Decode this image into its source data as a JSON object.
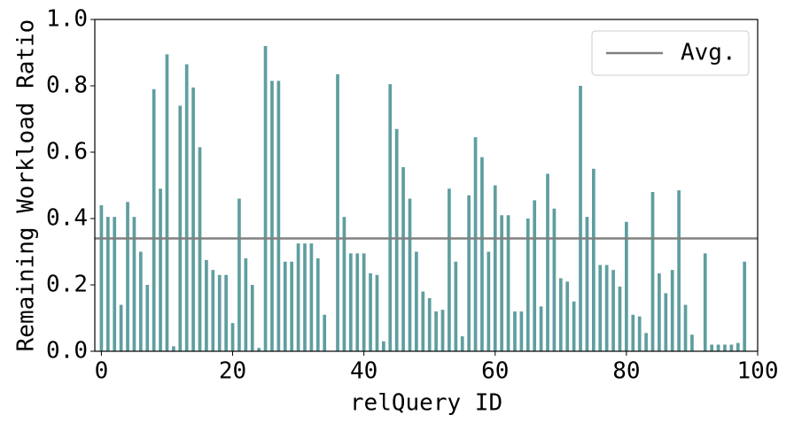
{
  "chart_data": {
    "type": "bar",
    "xlabel": "relQuery ID",
    "ylabel": "Remaining Workload Ratio",
    "x": [
      0,
      1,
      2,
      3,
      4,
      5,
      6,
      7,
      8,
      9,
      10,
      11,
      12,
      13,
      14,
      15,
      16,
      17,
      18,
      19,
      20,
      21,
      22,
      23,
      24,
      25,
      26,
      27,
      28,
      29,
      30,
      31,
      32,
      33,
      34,
      35,
      36,
      37,
      38,
      39,
      40,
      41,
      42,
      43,
      44,
      45,
      46,
      47,
      48,
      49,
      50,
      51,
      52,
      53,
      54,
      55,
      56,
      57,
      58,
      59,
      60,
      61,
      62,
      63,
      64,
      65,
      66,
      67,
      68,
      69,
      70,
      71,
      72,
      73,
      74,
      75,
      76,
      77,
      78,
      79,
      80,
      81,
      82,
      83,
      84,
      85,
      86,
      87,
      88,
      89,
      90,
      91,
      92,
      93,
      94,
      95,
      96,
      97,
      98
    ],
    "values": [
      0.44,
      0.405,
      0.405,
      0.14,
      0.45,
      0.405,
      0.3,
      0.2,
      0.79,
      0.49,
      0.895,
      0.015,
      0.74,
      0.865,
      0.795,
      0.615,
      0.275,
      0.245,
      0.23,
      0.23,
      0.085,
      0.46,
      0.28,
      0.2,
      0.01,
      0.92,
      0.815,
      0.815,
      0.27,
      0.27,
      0.325,
      0.325,
      0.325,
      0.28,
      0.11,
      0,
      0.835,
      0.405,
      0.295,
      0.295,
      0.295,
      0.235,
      0.23,
      0.03,
      0.805,
      0.67,
      0.555,
      0.46,
      0.3,
      0.18,
      0.16,
      0.12,
      0.125,
      0.49,
      0.27,
      0.045,
      0.47,
      0.645,
      0.585,
      0.3,
      0.5,
      0.41,
      0.41,
      0.12,
      0.12,
      0.4,
      0.455,
      0.135,
      0.535,
      0.43,
      0.22,
      0.21,
      0.15,
      0.8,
      0.405,
      0.55,
      0.26,
      0.26,
      0.245,
      0.195,
      0.39,
      0.11,
      0.105,
      0.055,
      0.48,
      0.235,
      0.175,
      0.245,
      0.485,
      0.14,
      0.05,
      0,
      0.295,
      0.02,
      0.02,
      0.02,
      0.02,
      0.025,
      0.27
    ],
    "color": "#5f9ea0",
    "average": {
      "name": "Avg.",
      "value": 0.34,
      "color": "#808080"
    },
    "xlim": [
      -1,
      100
    ],
    "xticks": [
      0,
      20,
      40,
      60,
      80,
      100
    ],
    "ylim": [
      0,
      1
    ],
    "yticks": [
      {
        "value": 0,
        "label": "0.0"
      },
      {
        "value": 0.2,
        "label": "0.2"
      },
      {
        "value": 0.4,
        "label": "0.4"
      },
      {
        "value": 0.6,
        "label": "0.6"
      },
      {
        "value": 0.8,
        "label": "0.8"
      },
      {
        "value": 1,
        "label": "1.0"
      }
    ],
    "legend": "upper right"
  }
}
